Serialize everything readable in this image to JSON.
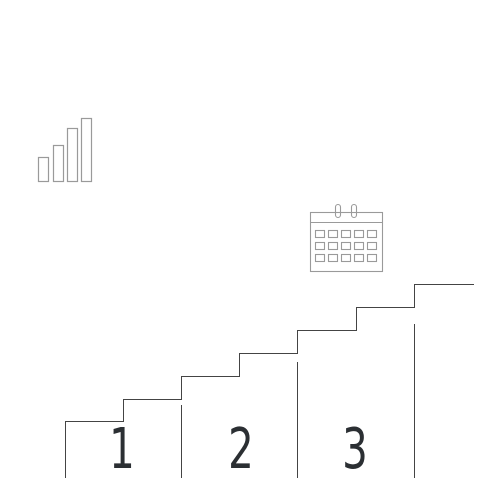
{
  "steps": {
    "numbers": [
      "1",
      "2",
      "3"
    ]
  },
  "icons": {
    "chart": "bar-chart-icon",
    "calendar": "calendar-icon"
  },
  "colors": {
    "stair_line": "#444444",
    "icon_stroke": "#9a9a9a",
    "numbers": "#2b2f33"
  }
}
